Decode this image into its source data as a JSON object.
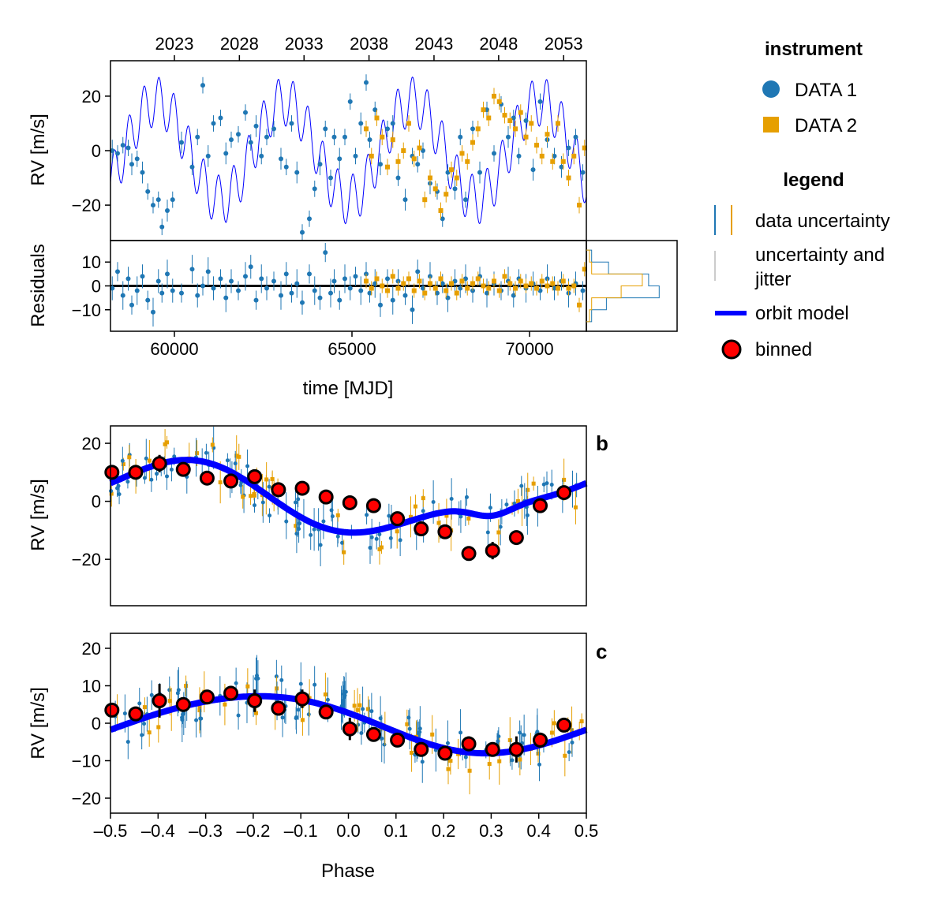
{
  "colors": {
    "data1": "#1f77b4",
    "data2": "#e69f00",
    "model": "#0000ff",
    "binned_fill": "#ff0000",
    "jitter": "#cccccc"
  },
  "chart_data": [
    {
      "id": "time_panel",
      "type": "scatter",
      "ylabel": "RV [m/s]",
      "ylim": [
        -33,
        33
      ],
      "xlim": [
        58200,
        71600
      ],
      "yticks": [
        -20,
        0,
        20
      ],
      "top_axis_label_years": [
        "2023",
        "2028",
        "2033",
        "2038",
        "2043",
        "2048",
        "2053"
      ],
      "top_axis_year_mjd": [
        60000,
        61830,
        63650,
        65480,
        67310,
        69130,
        70960
      ],
      "series": [
        {
          "name": "DATA 1",
          "marker": "circle",
          "x": [
            58250,
            58400,
            58550,
            58700,
            58800,
            58950,
            59100,
            59250,
            59400,
            59550,
            59650,
            59800,
            59950,
            60200,
            60500,
            60650,
            60800,
            60950,
            61100,
            61300,
            61450,
            61600,
            61800,
            62000,
            62150,
            62300,
            62450,
            62600,
            62800,
            63000,
            63150,
            63300,
            63450,
            63600,
            63800,
            63950,
            64100,
            64250,
            64400,
            64500,
            64650,
            64800,
            64950,
            65100,
            65250,
            65400,
            65500,
            65650,
            65800,
            66000,
            66150,
            66300,
            66500,
            66700,
            66850,
            67000,
            67200,
            67400,
            67550,
            67700,
            67900,
            68050,
            68200,
            68400,
            68600,
            68800,
            69000,
            69200,
            69400,
            69550,
            69700,
            69900,
            70100,
            70300,
            70500,
            70700,
            70900,
            71100,
            71300,
            71500
          ],
          "y": [
            0,
            -1,
            2,
            1,
            -5,
            -3,
            -8,
            -15,
            -20,
            -18,
            -28,
            -22,
            -18,
            3,
            -6,
            5,
            24,
            -2,
            10,
            12,
            -1,
            4,
            6,
            14,
            3,
            9,
            -2,
            5,
            8,
            -3,
            -6,
            10,
            -8,
            -30,
            -25,
            -14,
            -5,
            8,
            -10,
            5,
            -3,
            5,
            18,
            -2,
            10,
            25,
            4,
            15,
            -5,
            8,
            10,
            -10,
            -18,
            -2,
            -5,
            0,
            -12,
            -15,
            -25,
            -8,
            -14,
            5,
            -18,
            8,
            -8,
            15,
            -1,
            17,
            5,
            12,
            -2,
            11,
            -7,
            18,
            4,
            -2,
            -6,
            1,
            5,
            -8
          ],
          "err": [
            4,
            3,
            3,
            3,
            4,
            3,
            4,
            3,
            3,
            3,
            3,
            4,
            3,
            4,
            3,
            3,
            3,
            4,
            3,
            3,
            4,
            3,
            3,
            3,
            3,
            4,
            3,
            3,
            3,
            4,
            3,
            3,
            4,
            3,
            3,
            3,
            4,
            3,
            3,
            3,
            4,
            3,
            3,
            3,
            4,
            3,
            3,
            3,
            4,
            3,
            3,
            3,
            4,
            3,
            3,
            3,
            4,
            3,
            3,
            3,
            4,
            3,
            3,
            3,
            4,
            3,
            3,
            3,
            4,
            3,
            3,
            3,
            4,
            3,
            3,
            3,
            4,
            3,
            3,
            3
          ]
        },
        {
          "name": "DATA 2",
          "marker": "square",
          "x": [
            65400,
            65550,
            65700,
            65850,
            66000,
            66150,
            66300,
            66450,
            66600,
            66750,
            66900,
            67050,
            67200,
            67350,
            67500,
            67650,
            67800,
            67950,
            68100,
            68250,
            68400,
            68550,
            68700,
            68850,
            69000,
            69150,
            69300,
            69450,
            69600,
            69750,
            69900,
            70050,
            70200,
            70350,
            70500,
            70650,
            70800,
            70950,
            71100,
            71250,
            71400,
            71550
          ],
          "y": [
            8,
            -2,
            12,
            5,
            -6,
            4,
            -4,
            0,
            10,
            -3,
            1,
            -18,
            -10,
            -14,
            -22,
            -16,
            -7,
            -10,
            -1,
            -4,
            3,
            8,
            15,
            12,
            20,
            18,
            13,
            11,
            8,
            14,
            5,
            10,
            2,
            -2,
            6,
            -4,
            10,
            -4,
            -10,
            -2,
            -20,
            1
          ],
          "err": [
            3,
            3,
            3,
            3,
            3,
            3,
            3,
            3,
            3,
            3,
            3,
            3,
            3,
            3,
            3,
            3,
            3,
            3,
            3,
            3,
            3,
            3,
            3,
            3,
            3,
            3,
            3,
            3,
            3,
            3,
            3,
            3,
            3,
            3,
            3,
            3,
            3,
            3,
            3,
            3,
            3,
            3
          ]
        }
      ]
    },
    {
      "id": "residual_panel",
      "type": "scatter",
      "ylabel": "Residuals",
      "xlabel": "time [MJD]",
      "ylim": [
        -19,
        19
      ],
      "xlim": [
        58200,
        71600
      ],
      "yticks": [
        -10,
        0,
        10
      ],
      "xticks": [
        60000,
        65000,
        70000
      ],
      "series": [
        {
          "name": "DATA 1",
          "marker": "circle",
          "x": [
            58250,
            58400,
            58550,
            58700,
            58800,
            58950,
            59100,
            59250,
            59400,
            59550,
            59650,
            59800,
            59950,
            60200,
            60500,
            60650,
            60800,
            60950,
            61100,
            61300,
            61450,
            61600,
            61800,
            62000,
            62150,
            62300,
            62450,
            62600,
            62800,
            63000,
            63150,
            63300,
            63450,
            63600,
            63800,
            63950,
            64100,
            64250,
            64400,
            64500,
            64650,
            64800,
            64950,
            65100,
            65250,
            65400,
            65500,
            65650,
            65800,
            66000,
            66150,
            66300,
            66500,
            66700,
            66850,
            67000,
            67200,
            67400,
            67550,
            67700,
            67900,
            68050,
            68200,
            68400,
            68600,
            68800,
            69000,
            69200,
            69400,
            69550,
            69700,
            69900,
            70100,
            70300,
            70500,
            70700,
            70900,
            71100,
            71300,
            71500
          ],
          "y": [
            -1,
            6,
            -4,
            3,
            -8,
            -2,
            4,
            -6,
            -11,
            2,
            -3,
            5,
            -2,
            -3,
            7,
            -4,
            0,
            6,
            -1,
            3,
            -5,
            2,
            -2,
            4,
            8,
            -6,
            3,
            -1,
            2,
            -4,
            5,
            -3,
            1,
            -7,
            5,
            -2,
            -5,
            14,
            -3,
            2,
            -6,
            3,
            -1,
            4,
            -2,
            5,
            -3,
            1,
            -8,
            3,
            -6,
            2,
            -4,
            -10,
            6,
            -1,
            4,
            -3,
            1,
            -5,
            2,
            -1,
            3,
            -2,
            4,
            -3,
            1,
            -2,
            2,
            -4,
            3,
            -1,
            1,
            -2,
            3,
            -1,
            2,
            -3,
            1,
            -2
          ],
          "err": [
            5,
            4,
            6,
            5,
            4,
            6,
            5,
            4,
            6,
            5,
            4,
            6,
            5,
            4,
            6,
            5,
            4,
            6,
            5,
            4,
            6,
            5,
            4,
            6,
            5,
            4,
            6,
            5,
            4,
            6,
            5,
            4,
            6,
            5,
            4,
            6,
            5,
            4,
            6,
            5,
            4,
            6,
            5,
            4,
            6,
            5,
            4,
            6,
            5,
            4,
            6,
            5,
            4,
            6,
            5,
            4,
            6,
            5,
            4,
            6,
            5,
            4,
            6,
            5,
            4,
            6,
            5,
            4,
            6,
            5,
            4,
            6,
            5,
            4,
            6,
            5,
            4,
            6,
            5,
            4
          ]
        },
        {
          "name": "DATA 2",
          "marker": "square",
          "x": [
            65400,
            65550,
            65700,
            65850,
            66000,
            66150,
            66300,
            66450,
            66600,
            66750,
            66900,
            67050,
            67200,
            67350,
            67500,
            67650,
            67800,
            67950,
            68100,
            68250,
            68400,
            68550,
            68700,
            68850,
            69000,
            69150,
            69300,
            69450,
            69600,
            69750,
            69900,
            70050,
            70200,
            70350,
            70500,
            70650,
            70800,
            70950,
            71100,
            71250,
            71400,
            71550
          ],
          "y": [
            2,
            -1,
            3,
            0,
            -2,
            4,
            -1,
            1,
            3,
            -2,
            2,
            -3,
            1,
            -1,
            3,
            -2,
            1,
            -3,
            2,
            -1,
            1,
            3,
            0,
            -1,
            2,
            -2,
            4,
            1,
            -1,
            2,
            0,
            1,
            -1,
            2,
            0,
            1,
            -1,
            2,
            -1,
            0,
            -8,
            7
          ],
          "err": [
            3,
            3,
            3,
            3,
            3,
            3,
            3,
            3,
            3,
            3,
            3,
            3,
            3,
            3,
            3,
            3,
            3,
            3,
            3,
            3,
            3,
            3,
            3,
            3,
            3,
            3,
            3,
            3,
            3,
            3,
            3,
            3,
            3,
            3,
            3,
            3,
            3,
            3,
            3,
            3,
            3,
            3
          ]
        }
      ]
    },
    {
      "id": "phase_b",
      "type": "scatter",
      "label": "b",
      "ylabel": "RV [m/s]",
      "ylim": [
        -36,
        26
      ],
      "xlim": [
        -0.5,
        0.5
      ],
      "yticks": [
        -20,
        0,
        20
      ],
      "binned": {
        "x": [
          -0.497,
          -0.447,
          -0.397,
          -0.347,
          -0.297,
          -0.247,
          -0.197,
          -0.147,
          -0.097,
          -0.047,
          0.003,
          0.053,
          0.103,
          0.153,
          0.203,
          0.253,
          0.303,
          0.353,
          0.403,
          0.453
        ],
        "y": [
          10,
          10,
          13,
          11,
          8,
          7,
          8.5,
          4,
          4.5,
          1.5,
          -0.5,
          -1.5,
          -6,
          -9.5,
          -10.5,
          -18,
          -17,
          -12.5,
          -1.5,
          3
        ],
        "err": [
          2,
          1.5,
          3,
          2,
          2,
          2.5,
          2,
          2.5,
          1.5,
          1.5,
          2,
          2.5,
          2,
          2,
          2.5,
          2,
          3,
          1.5,
          2.5,
          1.5
        ]
      }
    },
    {
      "id": "phase_c",
      "type": "scatter",
      "label": "c",
      "ylabel": "RV [m/s]",
      "xlabel": "Phase",
      "ylim": [
        -24,
        24
      ],
      "xlim": [
        -0.5,
        0.5
      ],
      "yticks": [
        -20,
        -10,
        0,
        10,
        20
      ],
      "xticks": [
        -0.5,
        -0.4,
        -0.3,
        -0.2,
        -0.1,
        0.0,
        0.1,
        0.2,
        0.3,
        0.4,
        0.5
      ],
      "xtick_labels": [
        "–0.5",
        "–0.4",
        "–0.3",
        "–0.2",
        "–0.1",
        "0.0",
        "0.1",
        "0.2",
        "0.3",
        "0.4",
        "0.5"
      ],
      "binned": {
        "x": [
          -0.497,
          -0.447,
          -0.397,
          -0.347,
          -0.297,
          -0.247,
          -0.197,
          -0.147,
          -0.097,
          -0.047,
          0.003,
          0.053,
          0.103,
          0.153,
          0.203,
          0.253,
          0.303,
          0.353,
          0.403,
          0.453
        ],
        "y": [
          3.5,
          2.5,
          6,
          5,
          7,
          8,
          6,
          4,
          6.5,
          3,
          -1.5,
          -3,
          -4.5,
          -7,
          -8,
          -5.5,
          -7,
          -7,
          -4.5,
          -0.5
        ],
        "err": [
          1.5,
          1,
          4.5,
          1.5,
          1,
          2,
          3,
          1.5,
          2.5,
          1,
          3,
          1.5,
          1.5,
          1,
          1.5,
          2,
          1.5,
          3.5,
          2,
          1
        ]
      }
    }
  ],
  "legend": {
    "instrument_title": "instrument",
    "data1_label": "DATA 1",
    "data2_label": "DATA 2",
    "legend_title": "legend",
    "data_uncertainty": "data uncertainty",
    "jitter_line1": "uncertainty and",
    "jitter_line2": "jitter",
    "orbit_model": "orbit model",
    "binned": "binned"
  }
}
